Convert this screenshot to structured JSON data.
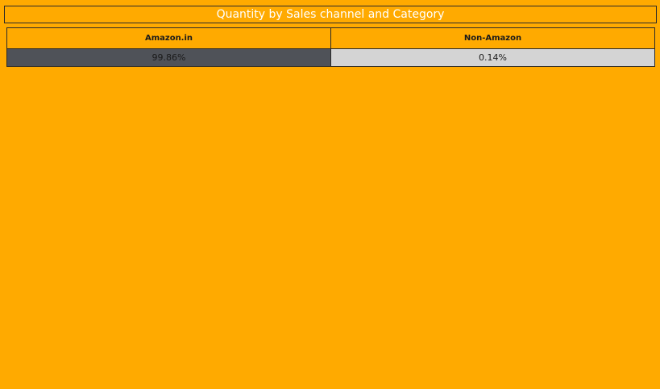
{
  "chart_data": {
    "type": "table",
    "title": "Quantity by Sales channel and Category",
    "columns": [
      "Amazon.in",
      "Non-Amazon"
    ],
    "values": [
      "99.86%",
      "0.14%"
    ],
    "numeric_values": [
      99.86,
      0.14
    ],
    "cell_colors": [
      "#4F5258",
      "#D4D4D4"
    ]
  }
}
